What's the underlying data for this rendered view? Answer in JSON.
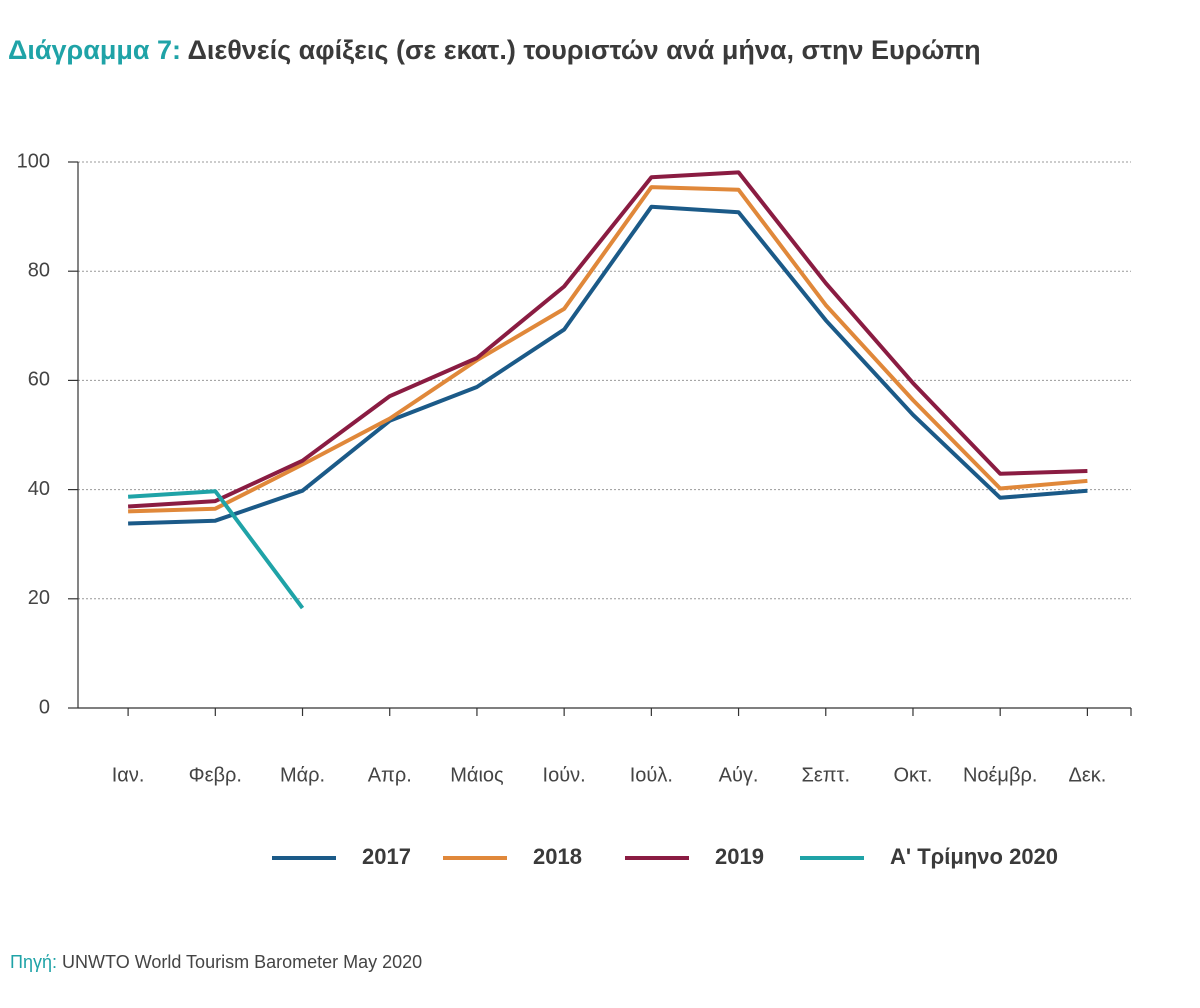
{
  "chart_data": {
    "type": "line",
    "title_label": "Διάγραμμα 7:",
    "title": "Διεθνείς αφίξεις (σε εκατ.) τουριστών ανά μήνα, στην Ευρώπη",
    "source_label": "Πηγή:",
    "source": "UNWTO World Tourism Barometer May 2020",
    "categories": [
      "Ιαν.",
      "Φεβρ.",
      "Μάρ.",
      "Απρ.",
      "Μάιος",
      "Ιούν.",
      "Ιούλ.",
      "Αύγ.",
      "Σεπτ.",
      "Οκτ.",
      "Νοέμβρ.",
      "Δεκ."
    ],
    "series": [
      {
        "name": "2017",
        "color": "#1b5a88",
        "values": [
          33.8,
          34.3,
          39.8,
          52.6,
          58.8,
          69.3,
          91.8,
          90.8,
          71.0,
          53.7,
          38.5,
          39.8
        ]
      },
      {
        "name": "2018",
        "color": "#e0883a",
        "values": [
          36.0,
          36.5,
          44.6,
          53.0,
          63.7,
          73.1,
          95.4,
          94.9,
          73.8,
          56.4,
          40.2,
          41.6
        ]
      },
      {
        "name": "2019",
        "color": "#8a1c42",
        "values": [
          36.9,
          37.9,
          45.3,
          57.1,
          64.1,
          77.2,
          97.2,
          98.1,
          77.8,
          59.5,
          42.9,
          43.4
        ]
      },
      {
        "name": "Α' Τρίμηνο 2020",
        "color": "#1fa3a7",
        "values": [
          38.7,
          39.7,
          18.3,
          null,
          null,
          null,
          null,
          null,
          null,
          null,
          null,
          null
        ]
      }
    ],
    "ylim": [
      0,
      100
    ],
    "yticks": [
      0,
      20,
      40,
      60,
      80,
      100
    ],
    "grid": true,
    "legend": "bottom"
  }
}
